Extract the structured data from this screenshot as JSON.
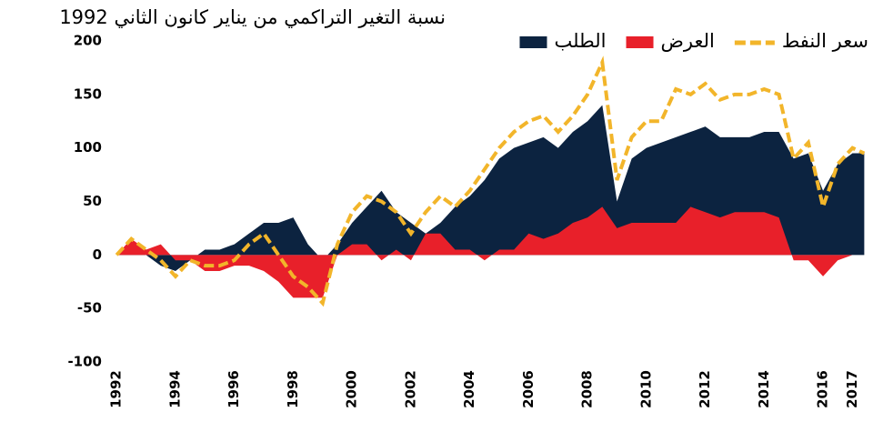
{
  "chart_data": {
    "type": "area",
    "title": "نسبة التغير التراكمي من يناير كانون الثاني 1992",
    "x": [
      1992,
      1992.5,
      1993,
      1993.5,
      1994,
      1994.5,
      1995,
      1995.5,
      1996,
      1996.5,
      1997,
      1997.5,
      1998,
      1998.5,
      1999,
      1999.5,
      2000,
      2000.5,
      2001,
      2001.5,
      2002,
      2002.5,
      2003,
      2003.5,
      2004,
      2004.5,
      2005,
      2005.5,
      2006,
      2006.5,
      2007,
      2007.5,
      2008,
      2008.5,
      2009,
      2009.5,
      2010,
      2010.5,
      2011,
      2011.5,
      2012,
      2012.5,
      2013,
      2013.5,
      2014,
      2014.5,
      2015,
      2015.5,
      2016,
      2016.5,
      2017,
      2017.4
    ],
    "series": [
      {
        "name": "الطلب",
        "color": "#0c2340",
        "style": "area",
        "values": [
          0,
          5,
          0,
          -10,
          -15,
          -5,
          5,
          5,
          10,
          20,
          30,
          30,
          35,
          10,
          -5,
          10,
          30,
          45,
          60,
          40,
          30,
          20,
          30,
          45,
          55,
          70,
          90,
          100,
          105,
          110,
          100,
          115,
          125,
          140,
          50,
          90,
          100,
          105,
          110,
          115,
          120,
          110,
          110,
          110,
          115,
          115,
          90,
          95,
          60,
          85,
          95,
          95
        ]
      },
      {
        "name": "العرض",
        "color": "#e8202a",
        "style": "area",
        "values": [
          0,
          15,
          5,
          10,
          -5,
          -5,
          -15,
          -15,
          -10,
          -10,
          -15,
          -25,
          -40,
          -40,
          -40,
          0,
          10,
          10,
          -5,
          5,
          -5,
          20,
          20,
          5,
          5,
          -5,
          5,
          5,
          20,
          15,
          20,
          30,
          35,
          45,
          25,
          30,
          30,
          30,
          30,
          45,
          40,
          35,
          40,
          40,
          40,
          35,
          -5,
          -5,
          -20,
          -5,
          0,
          0
        ]
      },
      {
        "name": "سعر النفط",
        "color": "#f2b52a",
        "style": "dashed-line",
        "values": [
          0,
          15,
          5,
          -5,
          -20,
          -5,
          -10,
          -10,
          -5,
          10,
          20,
          0,
          -20,
          -30,
          -45,
          10,
          40,
          55,
          50,
          40,
          20,
          40,
          55,
          45,
          60,
          80,
          100,
          115,
          125,
          130,
          115,
          130,
          150,
          180,
          70,
          110,
          125,
          125,
          155,
          150,
          160,
          145,
          150,
          150,
          155,
          150,
          90,
          105,
          45,
          85,
          100,
          95
        ]
      }
    ],
    "xlim": [
      1991.9,
      2017.45
    ],
    "xticks": [
      1992,
      1994,
      1996,
      1998,
      2000,
      2002,
      2004,
      2006,
      2008,
      2010,
      2012,
      2014,
      2016,
      2017
    ],
    "ylim": [
      -100,
      200
    ],
    "yticks": [
      -100,
      -50,
      0,
      50,
      100,
      150,
      200
    ],
    "legend": "top-right"
  }
}
